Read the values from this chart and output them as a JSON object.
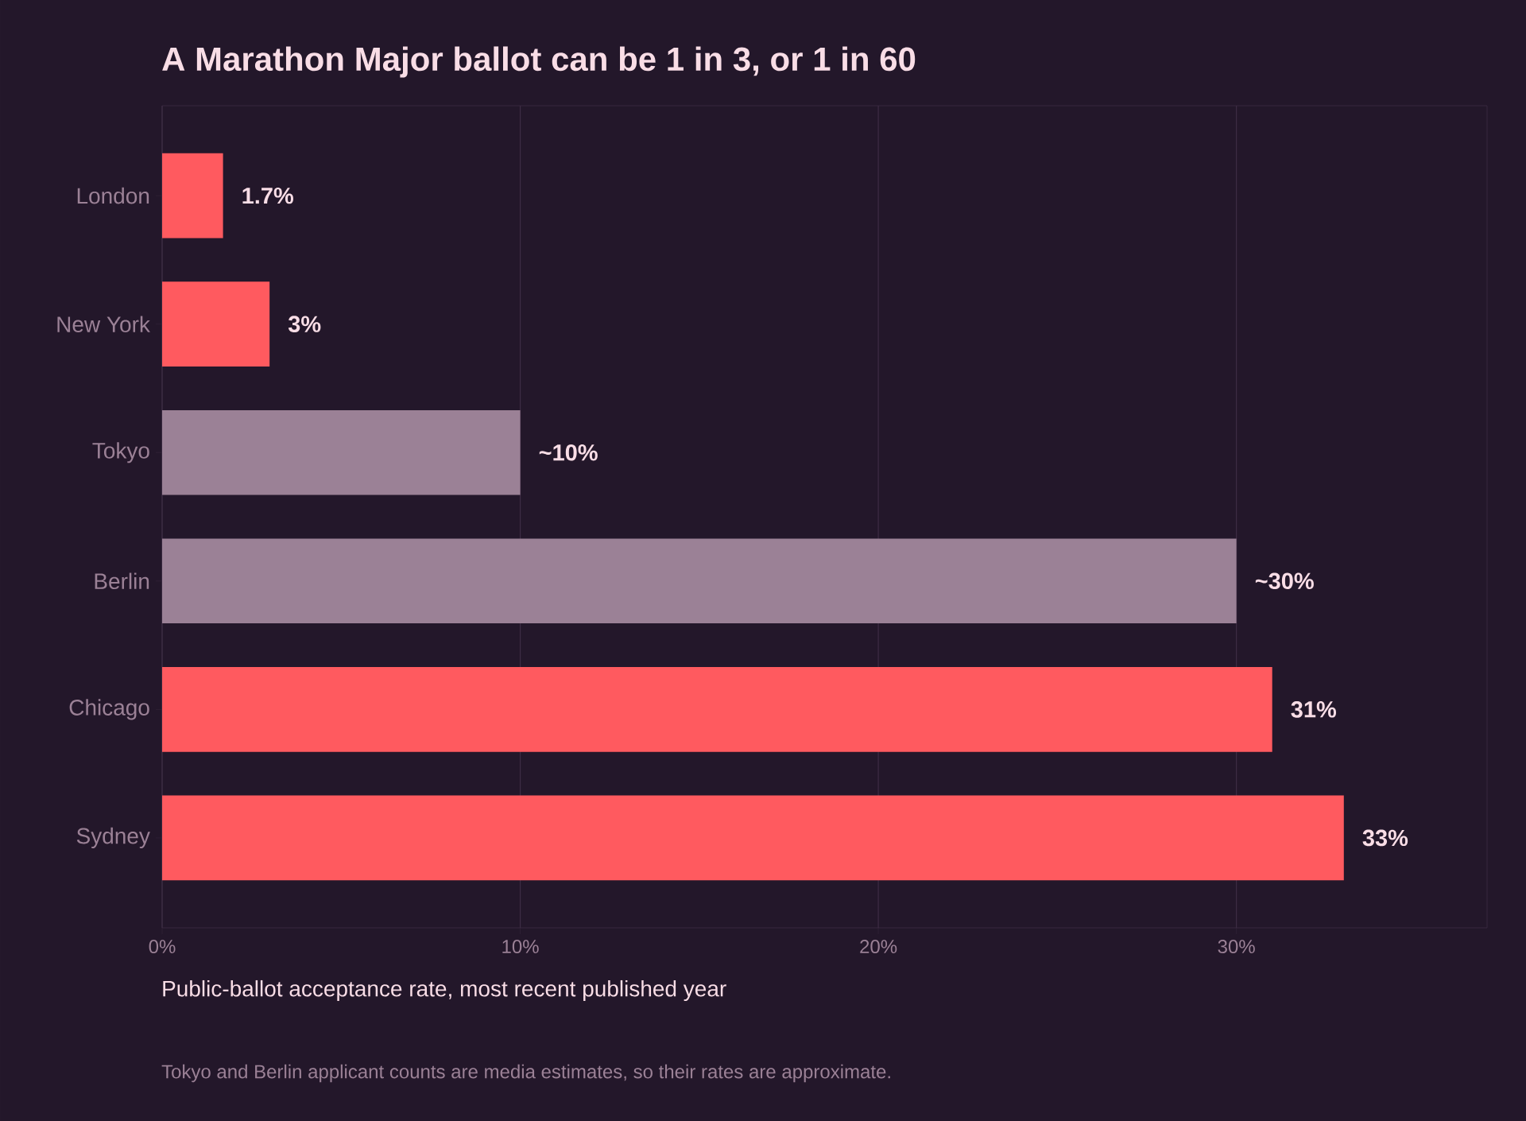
{
  "chart_data": {
    "type": "bar",
    "orientation": "horizontal",
    "title": "A Marathon Major ballot can be 1 in 3, or 1 in 60",
    "categories": [
      "London",
      "New York",
      "Tokyo",
      "Berlin",
      "Chicago",
      "Sydney"
    ],
    "values": [
      1.7,
      3,
      10,
      30,
      31,
      33
    ],
    "colors": [
      "#ff5a5f",
      "#ff5a5f",
      "#9b8196",
      "#9b8196",
      "#ff5a5f",
      "#ff5a5f"
    ],
    "value_labels": [
      "1.7%",
      "3%",
      "~10%",
      "~30%",
      "31%",
      "33%"
    ],
    "xlim": [
      0,
      37
    ],
    "xticks": [
      {
        "value": 0,
        "label": "0%"
      },
      {
        "value": 10,
        "label": "10%"
      },
      {
        "value": 20,
        "label": "20%"
      },
      {
        "value": 30,
        "label": "30%"
      }
    ],
    "xlabel": "Public-ballot acceptance rate, most recent published year",
    "annotations": [
      "Tokyo and Berlin applicant counts are media estimates, so their rates are approximate."
    ],
    "grid": "x"
  }
}
